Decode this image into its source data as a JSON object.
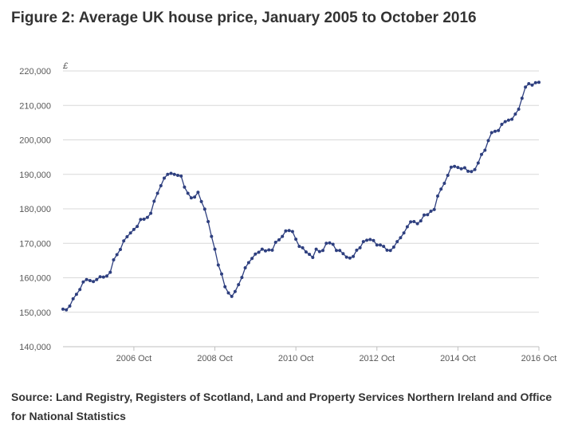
{
  "title": "Figure 2: Average UK house price, January 2005 to October 2016",
  "source": "Source: Land Registry, Registers of Scotland, Land and Property Services Northern Ireland and Office for National Statistics",
  "chart_data": {
    "type": "line",
    "title": "Figure 2: Average UK house price, January 2005 to October 2016",
    "ylabel": "£",
    "ylim": [
      140000,
      220000
    ],
    "yticks": [
      140000,
      150000,
      160000,
      170000,
      180000,
      190000,
      200000,
      210000,
      220000
    ],
    "ytick_labels": [
      "140,000",
      "150,000",
      "160,000",
      "170,000",
      "180,000",
      "190,000",
      "200,000",
      "210,000",
      "220,000"
    ],
    "xticks": [
      "2006 Oct",
      "2008 Oct",
      "2010 Oct",
      "2012 Oct",
      "2014 Oct",
      "2016 Oct"
    ],
    "xtick_index": [
      21,
      45,
      69,
      93,
      117,
      141
    ],
    "grid": true,
    "legend": "none",
    "line_color": "#2e3f7f",
    "x_start": "2005-01",
    "x_end": "2016-10",
    "series": [
      {
        "values": [
          150900,
          150700,
          151800,
          153900,
          155200,
          156600,
          158800,
          159500,
          159200,
          158900,
          159500,
          160300,
          160200,
          160500,
          161600,
          165200,
          166700,
          168200,
          170700,
          171900,
          173000,
          174000,
          174900,
          176900,
          177000,
          177500,
          178700,
          182200,
          184500,
          186700,
          188900,
          190000,
          190300,
          190000,
          189700,
          189500,
          186300,
          184500,
          183200,
          183400,
          184800,
          182100,
          179900,
          176300,
          172000,
          168300,
          163700,
          161100,
          157400,
          155600,
          154600,
          156000,
          158000,
          160100,
          162900,
          164400,
          165600,
          166900,
          167400,
          168300,
          167800,
          168100,
          168000,
          170300,
          171000,
          172000,
          173600,
          173700,
          173400,
          171200,
          169100,
          168700,
          167500,
          166800,
          165900,
          168300,
          167600,
          167900,
          170000,
          170100,
          169700,
          167900,
          167900,
          167000,
          166000,
          165700,
          166200,
          168000,
          168700,
          170500,
          170900,
          171100,
          170800,
          169500,
          169500,
          169100,
          168000,
          167900,
          168900,
          170500,
          171600,
          173000,
          174800,
          176200,
          176300,
          175700,
          176500,
          178200,
          178300,
          179300,
          179800,
          183700,
          185700,
          187400,
          189700,
          192100,
          192300,
          192000,
          191600,
          191900,
          190900,
          190800,
          191400,
          193300,
          195800,
          197000,
          199800,
          202100,
          202500,
          202700,
          204500,
          205300,
          205700,
          206000,
          207500,
          208900,
          212100,
          215300,
          216300,
          215900,
          216600,
          216700
        ]
      }
    ]
  }
}
